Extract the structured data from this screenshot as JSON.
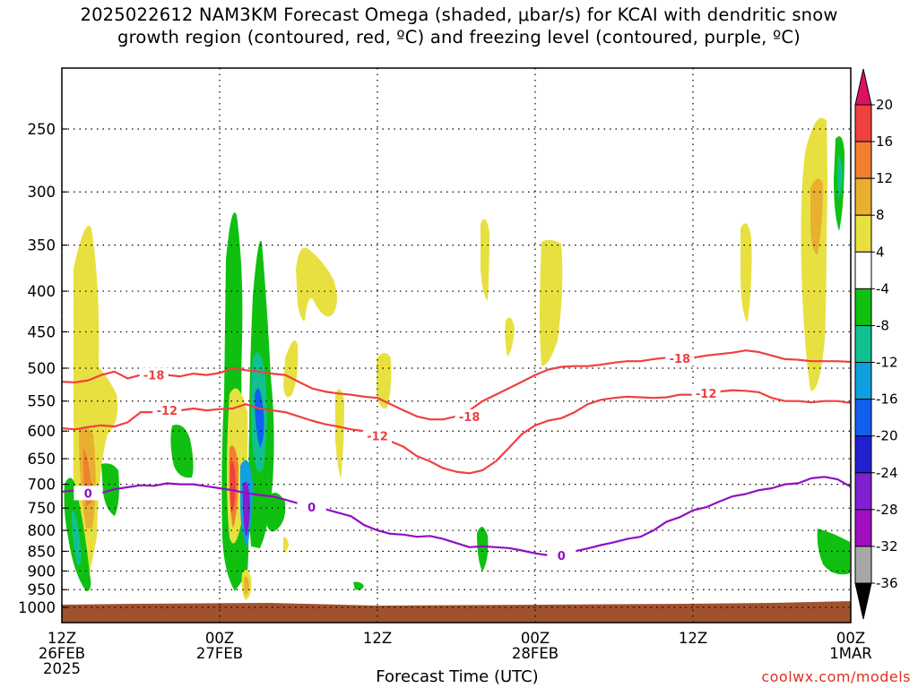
{
  "title": {
    "line1": "2025022612 NAM3KM Forecast Omega (shaded, μbar/s) for KCAI with dendritic snow",
    "line2": "growth region (contoured, red, ºC) and freezing level (contoured, purple, ºC)"
  },
  "credit": "coolwx.com/models",
  "chart_data": {
    "type": "contour",
    "xlabel": "Forecast Time (UTC)",
    "ylabel": "",
    "y_scale": "log-pressure",
    "ylim": [
      1000,
      210
    ],
    "xlim_hours": [
      0,
      60
    ],
    "yticks": [
      250,
      300,
      350,
      400,
      450,
      500,
      550,
      600,
      650,
      700,
      750,
      800,
      850,
      900,
      950,
      1000
    ],
    "xticks": [
      {
        "hour": 0,
        "lines": [
          "12Z",
          "26FEB",
          "2025"
        ]
      },
      {
        "hour": 12,
        "lines": [
          "00Z",
          "27FEB"
        ]
      },
      {
        "hour": 24,
        "lines": [
          "12Z"
        ]
      },
      {
        "hour": 36,
        "lines": [
          "00Z",
          "28FEB"
        ]
      },
      {
        "hour": 48,
        "lines": [
          "12Z"
        ]
      },
      {
        "hour": 60,
        "lines": [
          "00Z",
          "1MAR"
        ]
      }
    ],
    "colorbar": {
      "labels": [
        "20",
        "16",
        "12",
        "8",
        "4",
        "-4",
        "-8",
        "-12",
        "-16",
        "-20",
        "-24",
        "-28",
        "-32",
        "-36"
      ],
      "colors": [
        "#e01060",
        "#f04040",
        "#f08030",
        "#e8b030",
        "#e8e040",
        "#ffffff",
        "#10c010",
        "#10c090",
        "#10a0e0",
        "#1060f0",
        "#2020d0",
        "#8020d0",
        "#a010c0",
        "#a8a8a8",
        "#000000"
      ]
    },
    "contours": [
      {
        "name": "-18",
        "color": "#f04040",
        "points": [
          [
            0,
            520
          ],
          [
            1,
            521
          ],
          [
            2,
            518
          ],
          [
            3,
            510
          ],
          [
            4,
            505
          ],
          [
            5,
            515
          ],
          [
            6,
            510
          ],
          [
            7,
            508
          ],
          [
            8,
            510
          ],
          [
            9,
            512
          ],
          [
            10,
            508
          ],
          [
            11,
            510
          ],
          [
            12,
            507
          ],
          [
            13,
            500
          ],
          [
            14,
            503
          ],
          [
            15,
            505
          ],
          [
            16,
            508
          ],
          [
            17,
            510
          ],
          [
            18,
            520
          ],
          [
            19,
            530
          ],
          [
            20,
            535
          ],
          [
            21,
            538
          ],
          [
            22,
            540
          ],
          [
            23,
            543
          ],
          [
            24,
            545
          ],
          [
            25,
            555
          ],
          [
            26,
            565
          ],
          [
            27,
            575
          ],
          [
            28,
            580
          ],
          [
            29,
            580
          ],
          [
            30,
            575
          ],
          [
            31,
            565
          ],
          [
            32,
            550
          ],
          [
            33,
            540
          ],
          [
            34,
            530
          ],
          [
            35,
            520
          ],
          [
            36,
            510
          ],
          [
            37,
            502
          ],
          [
            38,
            498
          ],
          [
            39,
            497
          ],
          [
            40,
            497
          ],
          [
            41,
            495
          ],
          [
            42,
            492
          ],
          [
            43,
            490
          ],
          [
            44,
            490
          ],
          [
            45,
            487
          ],
          [
            46,
            485
          ],
          [
            47,
            486
          ],
          [
            48,
            485
          ],
          [
            49,
            482
          ],
          [
            50,
            480
          ],
          [
            51,
            478
          ],
          [
            52,
            475
          ],
          [
            53,
            477
          ],
          [
            54,
            482
          ],
          [
            55,
            487
          ],
          [
            56,
            488
          ],
          [
            57,
            490
          ],
          [
            58,
            490
          ],
          [
            59,
            490
          ],
          [
            60,
            491
          ]
        ],
        "label_at": [
          [
            7,
            510
          ],
          [
            31,
            575
          ],
          [
            47,
            486
          ]
        ]
      },
      {
        "name": "-12",
        "color": "#f04040",
        "points": [
          [
            0,
            595
          ],
          [
            1,
            597
          ],
          [
            2,
            593
          ],
          [
            3,
            590
          ],
          [
            4,
            592
          ],
          [
            5,
            585
          ],
          [
            6,
            568
          ],
          [
            7,
            568
          ],
          [
            8,
            565
          ],
          [
            9,
            565
          ],
          [
            10,
            562
          ],
          [
            11,
            565
          ],
          [
            12,
            563
          ],
          [
            13,
            562
          ],
          [
            14,
            555
          ],
          [
            15,
            562
          ],
          [
            16,
            565
          ],
          [
            17,
            568
          ],
          [
            18,
            575
          ],
          [
            19,
            582
          ],
          [
            20,
            588
          ],
          [
            21,
            592
          ],
          [
            22,
            597
          ],
          [
            23,
            600
          ],
          [
            24,
            608
          ],
          [
            25,
            618
          ],
          [
            26,
            628
          ],
          [
            27,
            645
          ],
          [
            28,
            655
          ],
          [
            29,
            668
          ],
          [
            30,
            675
          ],
          [
            31,
            678
          ],
          [
            32,
            672
          ],
          [
            33,
            655
          ],
          [
            34,
            630
          ],
          [
            35,
            605
          ],
          [
            36,
            590
          ],
          [
            37,
            582
          ],
          [
            38,
            578
          ],
          [
            39,
            568
          ],
          [
            40,
            555
          ],
          [
            41,
            548
          ],
          [
            42,
            545
          ],
          [
            43,
            543
          ],
          [
            44,
            544
          ],
          [
            45,
            545
          ],
          [
            46,
            544
          ],
          [
            47,
            540
          ],
          [
            48,
            540
          ],
          [
            49,
            538
          ],
          [
            50,
            535
          ],
          [
            51,
            533
          ],
          [
            52,
            534
          ],
          [
            53,
            536
          ],
          [
            54,
            545
          ],
          [
            55,
            550
          ],
          [
            56,
            550
          ],
          [
            57,
            552
          ],
          [
            58,
            550
          ],
          [
            59,
            550
          ],
          [
            60,
            553
          ]
        ],
        "label_at": [
          [
            8,
            565
          ],
          [
            24,
            608
          ],
          [
            49,
            538
          ]
        ]
      },
      {
        "name": "0",
        "color": "#9010c0",
        "points": [
          [
            0,
            715
          ],
          [
            1,
            713
          ],
          [
            2,
            712
          ],
          [
            3,
            718
          ],
          [
            4,
            710
          ],
          [
            5,
            706
          ],
          [
            6,
            702
          ],
          [
            7,
            703
          ],
          [
            8,
            698
          ],
          [
            9,
            700
          ],
          [
            10,
            700
          ],
          [
            11,
            704
          ],
          [
            12,
            708
          ],
          [
            13,
            712
          ],
          [
            14,
            718
          ],
          [
            15,
            722
          ],
          [
            16,
            725
          ],
          [
            17,
            732
          ],
          [
            18,
            740
          ],
          [
            19,
            748
          ],
          [
            20,
            752
          ],
          [
            21,
            760
          ],
          [
            22,
            768
          ],
          [
            23,
            788
          ],
          [
            24,
            800
          ],
          [
            25,
            808
          ],
          [
            26,
            810
          ],
          [
            27,
            815
          ],
          [
            28,
            813
          ],
          [
            29,
            820
          ],
          [
            30,
            830
          ],
          [
            31,
            840
          ],
          [
            32,
            838
          ],
          [
            33,
            840
          ],
          [
            34,
            842
          ],
          [
            35,
            848
          ],
          [
            36,
            855
          ],
          [
            37,
            860
          ],
          [
            38,
            860
          ],
          [
            39,
            850
          ],
          [
            40,
            843
          ],
          [
            41,
            835
          ],
          [
            42,
            828
          ],
          [
            43,
            820
          ],
          [
            44,
            815
          ],
          [
            45,
            800
          ],
          [
            46,
            780
          ],
          [
            47,
            770
          ],
          [
            48,
            755
          ],
          [
            49,
            748
          ],
          [
            50,
            736
          ],
          [
            51,
            725
          ],
          [
            52,
            720
          ],
          [
            53,
            712
          ],
          [
            54,
            708
          ],
          [
            55,
            700
          ],
          [
            56,
            698
          ],
          [
            57,
            688
          ],
          [
            58,
            685
          ],
          [
            59,
            690
          ],
          [
            60,
            705
          ]
        ],
        "label_at": [
          [
            2,
            718
          ],
          [
            19,
            748
          ],
          [
            38,
            860
          ]
        ]
      }
    ]
  }
}
